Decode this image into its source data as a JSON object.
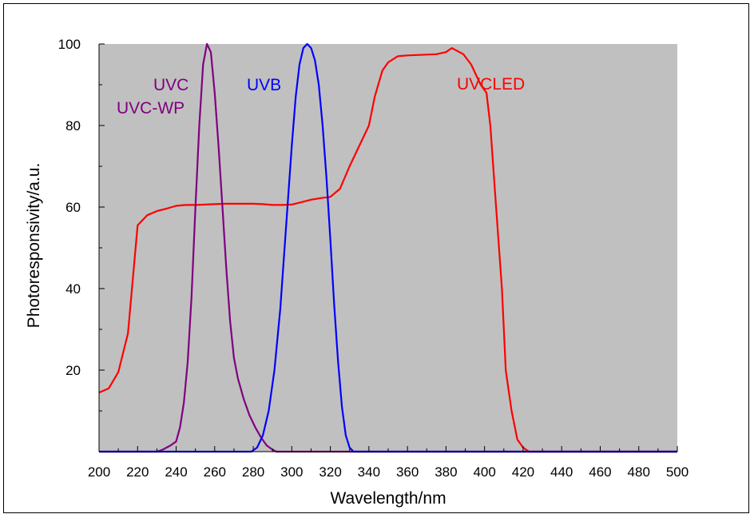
{
  "chart_data": {
    "type": "line",
    "title": "",
    "xlabel": "Wavelength/nm",
    "ylabel": "Photoresponsivity/a.u.",
    "xlim": [
      200,
      500
    ],
    "ylim": [
      0,
      100
    ],
    "xticks": [
      200,
      220,
      240,
      260,
      280,
      300,
      320,
      340,
      360,
      380,
      400,
      420,
      440,
      460,
      480,
      500
    ],
    "yticks": [
      20,
      40,
      60,
      80,
      100
    ],
    "background": "#c0c0c0",
    "grid": false,
    "labels": [
      {
        "text": "UVC",
        "color": "#800080"
      },
      {
        "text": "UVC-WP",
        "color": "#800080"
      },
      {
        "text": "UVB",
        "color": "#0000ff"
      },
      {
        "text": "UVCLED",
        "color": "#ff0000"
      }
    ],
    "series": [
      {
        "color": "#ff0000",
        "points": [
          [
            200,
            14.5
          ],
          [
            205,
            15.5
          ],
          [
            210,
            19.5
          ],
          [
            215,
            29
          ],
          [
            220,
            55.5
          ],
          [
            225,
            58
          ],
          [
            230,
            59
          ],
          [
            235,
            59.6
          ],
          [
            240,
            60.3
          ],
          [
            245,
            60.5
          ],
          [
            250,
            60.5
          ],
          [
            255,
            60.6
          ],
          [
            260,
            60.7
          ],
          [
            265,
            60.8
          ],
          [
            270,
            60.8
          ],
          [
            275,
            60.8
          ],
          [
            280,
            60.8
          ],
          [
            285,
            60.7
          ],
          [
            290,
            60.5
          ],
          [
            295,
            60.5
          ],
          [
            300,
            60.6
          ],
          [
            305,
            61.2
          ],
          [
            310,
            61.8
          ],
          [
            315,
            62.2
          ],
          [
            320,
            62.5
          ],
          [
            325,
            64.5
          ],
          [
            330,
            70
          ],
          [
            335,
            75
          ],
          [
            340,
            80
          ],
          [
            343,
            87
          ],
          [
            347,
            93.5
          ],
          [
            350,
            95.5
          ],
          [
            355,
            97
          ],
          [
            360,
            97.2
          ],
          [
            365,
            97.3
          ],
          [
            370,
            97.4
          ],
          [
            375,
            97.5
          ],
          [
            380,
            98
          ],
          [
            383,
            99
          ],
          [
            385,
            98.5
          ],
          [
            389,
            97.5
          ],
          [
            393,
            95
          ],
          [
            398,
            90
          ],
          [
            401,
            88
          ],
          [
            403,
            80
          ],
          [
            406,
            60
          ],
          [
            409,
            40
          ],
          [
            411,
            20
          ],
          [
            414,
            10
          ],
          [
            417,
            3
          ],
          [
            420,
            1
          ],
          [
            423,
            0
          ],
          [
            500,
            0
          ]
        ]
      },
      {
        "color": "#800080",
        "points": [
          [
            200,
            0
          ],
          [
            230,
            0
          ],
          [
            233,
            0.5
          ],
          [
            237,
            1.5
          ],
          [
            240,
            2.5
          ],
          [
            242,
            6
          ],
          [
            244,
            12
          ],
          [
            246,
            22
          ],
          [
            248,
            38
          ],
          [
            250,
            60
          ],
          [
            252,
            80
          ],
          [
            254,
            95
          ],
          [
            256,
            100
          ],
          [
            258,
            98
          ],
          [
            260,
            88
          ],
          [
            262,
            75
          ],
          [
            264,
            60
          ],
          [
            266,
            45
          ],
          [
            268,
            32
          ],
          [
            270,
            23
          ],
          [
            272,
            18
          ],
          [
            275,
            13
          ],
          [
            278,
            9
          ],
          [
            281,
            6
          ],
          [
            284,
            3.5
          ],
          [
            287,
            1.5
          ],
          [
            290,
            0.5
          ],
          [
            292,
            0
          ],
          [
            500,
            0
          ]
        ]
      },
      {
        "color": "#0000ff",
        "points": [
          [
            200,
            0
          ],
          [
            279,
            0
          ],
          [
            282,
            1
          ],
          [
            285,
            4
          ],
          [
            288,
            10
          ],
          [
            291,
            20
          ],
          [
            294,
            35
          ],
          [
            297,
            55
          ],
          [
            300,
            75
          ],
          [
            302,
            87
          ],
          [
            304,
            95
          ],
          [
            306,
            99
          ],
          [
            308,
            100
          ],
          [
            310,
            99
          ],
          [
            312,
            96
          ],
          [
            314,
            90
          ],
          [
            316,
            80
          ],
          [
            318,
            67
          ],
          [
            320,
            52
          ],
          [
            322,
            36
          ],
          [
            324,
            22
          ],
          [
            326,
            11
          ],
          [
            328,
            4
          ],
          [
            330,
            1
          ],
          [
            332,
            0
          ],
          [
            500,
            0
          ]
        ]
      }
    ]
  }
}
